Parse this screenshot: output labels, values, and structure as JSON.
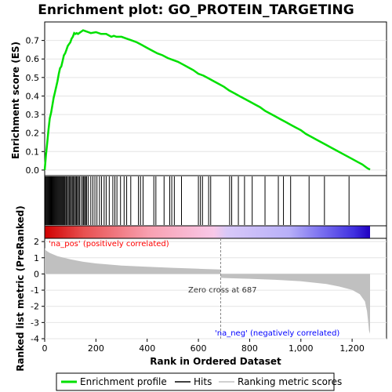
{
  "title": "Enrichment plot: GO_PROTEIN_TARGETING",
  "legend": {
    "items": [
      {
        "label": "Enrichment profile",
        "color": "#00e000"
      },
      {
        "label": "Hits",
        "color": "#000000"
      },
      {
        "label": "Ranking metric scores",
        "color": "#c0c0c0"
      }
    ]
  },
  "annotations": {
    "pos_label": "'na_pos' (positively correlated)",
    "neg_label": "'na_neg' (negatively correlated)",
    "zero_cross": "Zero cross at 687",
    "pos_color": "#ff0000",
    "neg_color": "#0000ff"
  },
  "chart_data": [
    {
      "type": "line",
      "ylabel": "Enrichment score (ES)",
      "xlim": [
        0,
        1270
      ],
      "ylim": [
        -0.03,
        0.8
      ],
      "yticks": [
        0.0,
        0.1,
        0.2,
        0.3,
        0.4,
        0.5,
        0.6,
        0.7
      ],
      "ytick_labels": [
        "0.0",
        "0.1",
        "0.2",
        "0.3",
        "0.4",
        "0.5",
        "0.6",
        "0.7"
      ],
      "series": [
        {
          "name": "Enrichment profile",
          "color": "#00e000",
          "x": [
            0,
            5,
            10,
            15,
            20,
            25,
            30,
            35,
            40,
            45,
            50,
            55,
            60,
            65,
            70,
            75,
            80,
            85,
            90,
            95,
            100,
            105,
            110,
            115,
            120,
            125,
            130,
            140,
            150,
            160,
            170,
            180,
            200,
            220,
            240,
            260,
            270,
            280,
            300,
            320,
            340,
            360,
            380,
            400,
            420,
            440,
            460,
            480,
            500,
            520,
            540,
            560,
            580,
            600,
            620,
            640,
            660,
            680,
            700,
            720,
            740,
            760,
            780,
            800,
            820,
            840,
            860,
            880,
            900,
            920,
            940,
            960,
            980,
            1000,
            1020,
            1040,
            1060,
            1080,
            1100,
            1120,
            1140,
            1160,
            1180,
            1200,
            1220,
            1240,
            1260,
            1270
          ],
          "y": [
            0.0,
            0.08,
            0.15,
            0.22,
            0.28,
            0.31,
            0.35,
            0.39,
            0.42,
            0.45,
            0.48,
            0.52,
            0.55,
            0.56,
            0.59,
            0.62,
            0.63,
            0.65,
            0.67,
            0.68,
            0.69,
            0.71,
            0.72,
            0.74,
            0.735,
            0.74,
            0.735,
            0.745,
            0.755,
            0.75,
            0.745,
            0.74,
            0.745,
            0.735,
            0.735,
            0.72,
            0.725,
            0.72,
            0.72,
            0.71,
            0.7,
            0.69,
            0.675,
            0.66,
            0.645,
            0.63,
            0.62,
            0.605,
            0.595,
            0.585,
            0.57,
            0.555,
            0.54,
            0.52,
            0.51,
            0.495,
            0.48,
            0.465,
            0.45,
            0.43,
            0.415,
            0.4,
            0.385,
            0.37,
            0.355,
            0.34,
            0.32,
            0.305,
            0.29,
            0.275,
            0.26,
            0.245,
            0.23,
            0.215,
            0.195,
            0.18,
            0.165,
            0.15,
            0.135,
            0.12,
            0.105,
            0.09,
            0.075,
            0.06,
            0.045,
            0.03,
            0.01,
            0.003
          ]
        }
      ]
    },
    {
      "type": "scatter",
      "series": [
        {
          "name": "Hits",
          "x": [
            2,
            5,
            8,
            11,
            14,
            17,
            20,
            23,
            26,
            29,
            32,
            35,
            38,
            41,
            44,
            47,
            50,
            53,
            56,
            59,
            62,
            65,
            68,
            71,
            74,
            77,
            80,
            84,
            88,
            92,
            96,
            100,
            104,
            108,
            112,
            116,
            120,
            124,
            128,
            132,
            136,
            142,
            148,
            152,
            156,
            160,
            164,
            170,
            180,
            188,
            196,
            204,
            214,
            222,
            232,
            240,
            252,
            266,
            274,
            282,
            296,
            310,
            320,
            336,
            366,
            374,
            384,
            426,
            434,
            466,
            488,
            496,
            506,
            534,
            600,
            608,
            616,
            640,
            648,
            722,
            730,
            756,
            780,
            810,
            860,
            912,
            932,
            960,
            1032,
            1092,
            1188
          ]
        }
      ]
    },
    {
      "type": "area",
      "ylabel": "Ranked list metric (PreRanked)",
      "xlabel": "Rank in Ordered Dataset",
      "xlim": [
        0,
        1270
      ],
      "ylim": [
        -4,
        2.2
      ],
      "xticks": [
        0,
        200,
        400,
        600,
        800,
        1000,
        1200
      ],
      "xtick_labels": [
        "0",
        "200",
        "400",
        "600",
        "800",
        "1,000",
        "1,200"
      ],
      "yticks": [
        -4,
        -3,
        -2,
        -1,
        0,
        1,
        2
      ],
      "ytick_labels": [
        "-4",
        "-3",
        "-2",
        "-1",
        "0",
        "1",
        "2"
      ],
      "series": [
        {
          "name": "Ranking metric scores",
          "color": "#c0c0c0",
          "x": [
            0,
            5,
            20,
            50,
            100,
            150,
            200,
            300,
            400,
            500,
            600,
            686,
            687,
            700,
            800,
            900,
            1000,
            1100,
            1150,
            1200,
            1230,
            1250,
            1258,
            1263,
            1266,
            1270
          ],
          "y": [
            1.6,
            1.45,
            1.3,
            1.1,
            0.9,
            0.75,
            0.65,
            0.52,
            0.44,
            0.38,
            0.32,
            0.27,
            -0.23,
            -0.25,
            -0.3,
            -0.36,
            -0.45,
            -0.62,
            -0.78,
            -0.98,
            -1.25,
            -1.7,
            -2.3,
            -3.0,
            -3.5,
            -3.7
          ]
        }
      ]
    }
  ]
}
